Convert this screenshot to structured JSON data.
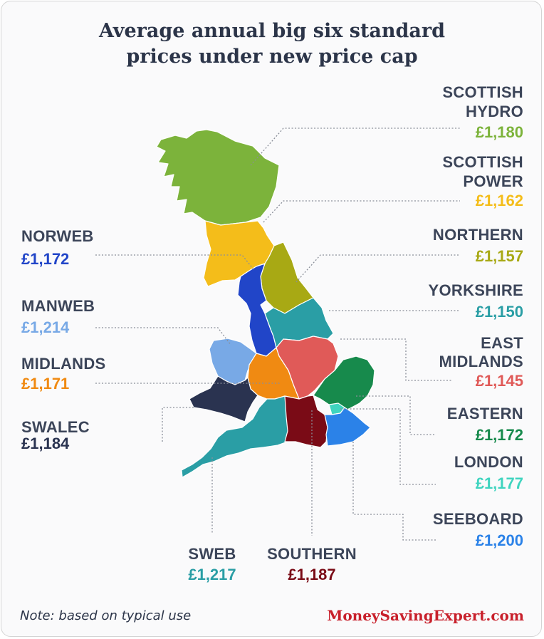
{
  "title_line1": "Average annual big six standard",
  "title_line2": "prices under new price cap",
  "regions": {
    "scottish_hydro": {
      "name1": "SCOTTISH",
      "name2": "HYDRO",
      "price": "£1,180",
      "color": "#7cb33b"
    },
    "scottish_power": {
      "name1": "SCOTTISH",
      "name2": "POWER",
      "price": "£1,162",
      "color": "#f4bd1a"
    },
    "northern": {
      "name": "NORTHERN",
      "price": "£1,157",
      "color": "#a8a914"
    },
    "yorkshire": {
      "name": "YORKSHIRE",
      "price": "£1,150",
      "color": "#2a9ea5"
    },
    "east_midlands": {
      "name1": "EAST",
      "name2": "MIDLANDS",
      "price": "£1,145",
      "color": "#e05a58"
    },
    "eastern": {
      "name": "EASTERN",
      "price": "£1,172",
      "color": "#178a4c"
    },
    "london": {
      "name": "LONDON",
      "price": "£1,177",
      "color": "#3fd4bf"
    },
    "seeboard": {
      "name": "SEEBOARD",
      "price": "£1,200",
      "color": "#2b82e8"
    },
    "southern": {
      "name": "SOUTHERN",
      "price": "£1,187",
      "color": "#7a0b16"
    },
    "sweb": {
      "name": "SWEB",
      "price": "£1,217",
      "color": "#2a9ea5"
    },
    "swalec": {
      "name": "SWALEC",
      "price": "£1,184",
      "color": "#2a3350"
    },
    "midlands": {
      "name": "MIDLANDS",
      "price": "£1,171",
      "color": "#f08a12"
    },
    "manweb": {
      "name": "MANWEB",
      "price": "£1,214",
      "color": "#78a9e6"
    },
    "norweb": {
      "name": "NORWEB",
      "price": "£1,172",
      "color": "#2145c8"
    }
  },
  "note": "Note: based on typical use",
  "brand": "MoneySavingExpert.com"
}
